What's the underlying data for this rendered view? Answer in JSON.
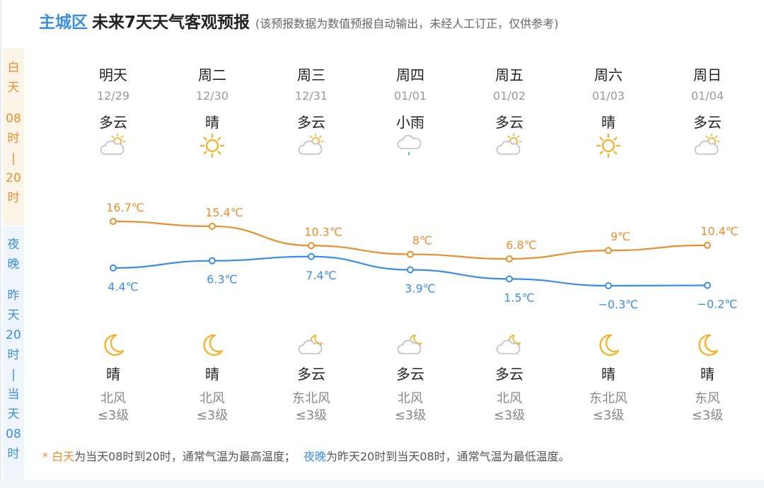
{
  "header": {
    "city": "主城区",
    "title": "未来7天天气客观预报",
    "note": "(该预报数据为数值预报自动输出，未经人工订正，仅供参考)"
  },
  "side": {
    "day": [
      "白",
      "天",
      "08",
      "时",
      "|",
      "20",
      "时"
    ],
    "night": [
      "夜",
      "晚",
      "昨",
      "天",
      "20",
      "时",
      "|",
      "当",
      "天",
      "08",
      "时"
    ]
  },
  "days": [
    {
      "name": "明天",
      "date": "12/29",
      "day_cond": "多云",
      "day_icon": "partly-cloudy-day-icon",
      "night_cond": "晴",
      "night_icon": "moon-icon",
      "wind": "北风",
      "level": "≤3级"
    },
    {
      "name": "周二",
      "date": "12/30",
      "day_cond": "晴",
      "day_icon": "sun-icon",
      "night_cond": "晴",
      "night_icon": "moon-icon",
      "wind": "北风",
      "level": "≤3级"
    },
    {
      "name": "周三",
      "date": "12/31",
      "day_cond": "多云",
      "day_icon": "partly-cloudy-day-icon",
      "night_cond": "多云",
      "night_icon": "partly-cloudy-night-icon",
      "wind": "东北风",
      "level": "≤3级"
    },
    {
      "name": "周四",
      "date": "01/01",
      "day_cond": "小雨",
      "day_icon": "light-rain-icon",
      "night_cond": "多云",
      "night_icon": "partly-cloudy-night-icon",
      "wind": "北风",
      "level": "≤3级"
    },
    {
      "name": "周五",
      "date": "01/02",
      "day_cond": "多云",
      "day_icon": "partly-cloudy-day-icon",
      "night_cond": "多云",
      "night_icon": "partly-cloudy-night-icon",
      "wind": "北风",
      "level": "≤3级"
    },
    {
      "name": "周六",
      "date": "01/03",
      "day_cond": "晴",
      "day_icon": "sun-icon",
      "night_cond": "晴",
      "night_icon": "moon-icon",
      "wind": "东北风",
      "level": "≤3级"
    },
    {
      "name": "周日",
      "date": "01/04",
      "day_cond": "多云",
      "day_icon": "partly-cloudy-day-icon",
      "night_cond": "晴",
      "night_icon": "moon-icon",
      "wind": "东风",
      "level": "≤3级"
    }
  ],
  "chart_data": {
    "type": "line",
    "x": [
      "12/29",
      "12/30",
      "12/31",
      "01/01",
      "01/02",
      "01/03",
      "01/04"
    ],
    "series": [
      {
        "name": "白天",
        "values": [
          16.7,
          15.4,
          10.3,
          8,
          6.8,
          9,
          10.4
        ],
        "labels": [
          "16.7℃",
          "15.4℃",
          "10.3℃",
          "8℃",
          "6.8℃",
          "9℃",
          "10.4℃"
        ],
        "color": "#e8902e"
      },
      {
        "name": "夜晚",
        "values": [
          4.4,
          6.3,
          7.4,
          3.9,
          1.5,
          -0.3,
          -0.2
        ],
        "labels": [
          "4.4℃",
          "6.3℃",
          "7.4℃",
          "3.9℃",
          "1.5℃",
          "−0.3℃",
          "−0.2℃"
        ],
        "color": "#3c8ee2"
      }
    ],
    "grid": false
  },
  "footer": {
    "star": "*",
    "day_word": "白天",
    "day_text": "为当天08时到20时，通常气温为最高温度；",
    "night_word": "夜晚",
    "night_text": "为昨天20时到当天08时，通常气温为最低温度。"
  },
  "colors": {
    "day": "#e8902e",
    "night": "#3c8ee2",
    "sun": "#f2b52d",
    "moon": "#f2b52d",
    "cloud": "#bfbfbf",
    "rain": "#4aa3df"
  }
}
